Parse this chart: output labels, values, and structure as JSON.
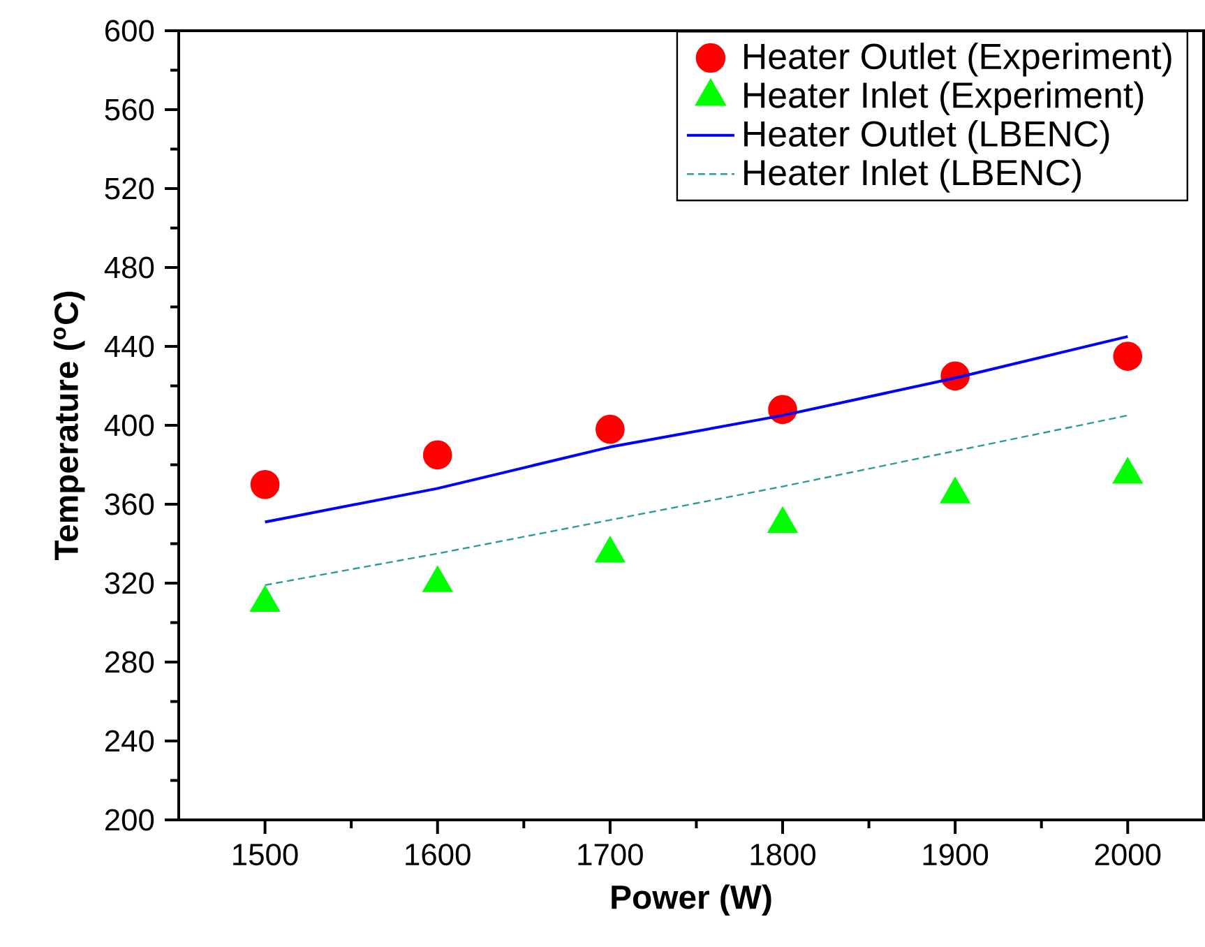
{
  "chart_data": {
    "type": "scatter",
    "xlabel": "Power (W)",
    "ylabel": "Temperature ($^{o}$C)",
    "x": [
      1500,
      1600,
      1700,
      1800,
      1900,
      2000
    ],
    "series": [
      {
        "name": "Heater Outlet (Experiment)",
        "color": "#ff0000",
        "marker": "circle",
        "values": [
          370,
          385,
          398,
          408,
          425,
          435
        ]
      },
      {
        "name": "Heater Inlet (Experiment)",
        "color": "#00ff00",
        "marker": "triangle",
        "values": [
          310,
          320,
          335,
          350,
          365,
          375
        ]
      },
      {
        "name": "Heater Outlet (LBENC)",
        "type": "line",
        "color": "#0000ff",
        "line_style": "solid",
        "values": [
          351,
          368,
          389,
          405,
          424,
          445
        ]
      },
      {
        "name": "Heater Inlet (LBENC)",
        "type": "line",
        "color": "#2e9b9b",
        "line_style": "dashed",
        "values": [
          319,
          335,
          352,
          369,
          387,
          405
        ]
      }
    ],
    "xlim": [
      1450,
      2044
    ],
    "xticks": [
      1500,
      1600,
      1700,
      1800,
      1900,
      2000
    ],
    "ylim": [
      200,
      600
    ],
    "yticks": [
      200,
      240,
      280,
      320,
      360,
      400,
      440,
      480,
      520,
      560,
      600
    ],
    "grid": false,
    "legend": "top right"
  }
}
